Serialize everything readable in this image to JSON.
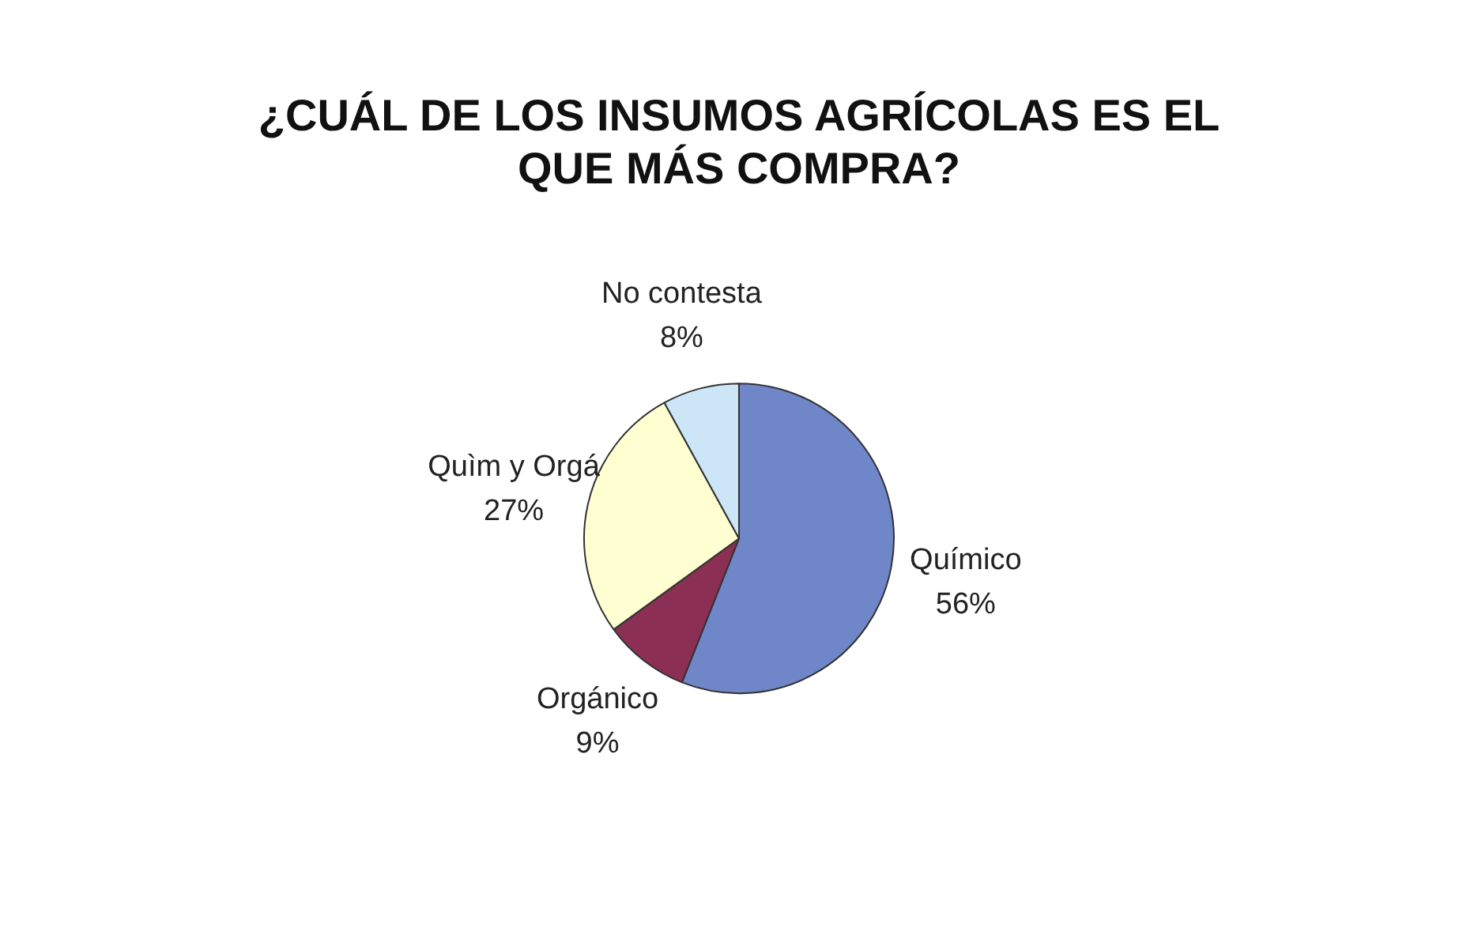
{
  "chart_data": {
    "type": "pie",
    "title": "¿CUÁL DE LOS INSUMOS AGRÍCOLAS ES EL QUE MÁS COMPRA?",
    "categories": [
      "Químico",
      "Orgánico",
      "Quìm y Orgá",
      "No contesta"
    ],
    "values": [
      56,
      9,
      27,
      8
    ],
    "colors": [
      "#6f86c8",
      "#8b2f55",
      "#ffffd2",
      "#cde6f7"
    ],
    "value_labels": [
      "56%",
      "9%",
      "27%",
      "8%"
    ],
    "legend": false
  }
}
